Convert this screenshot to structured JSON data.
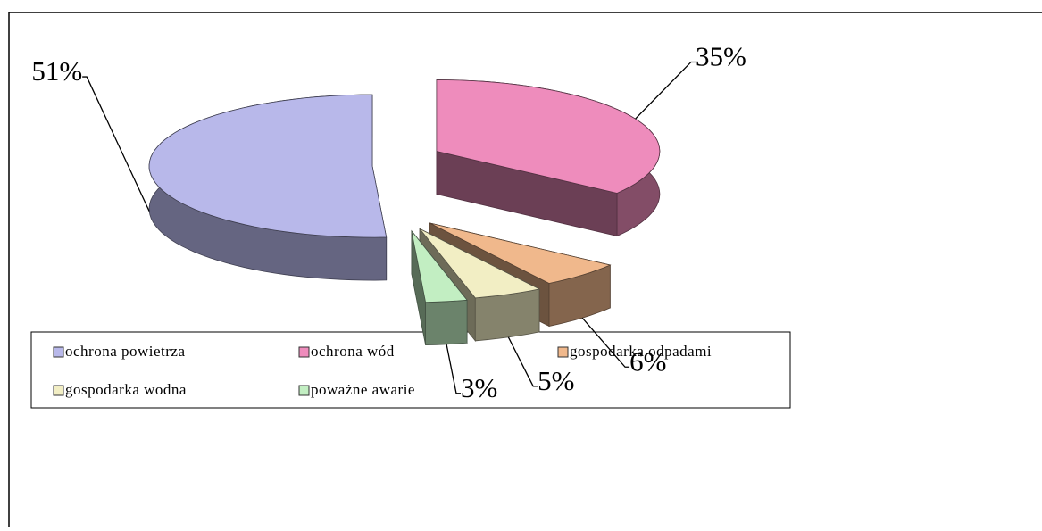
{
  "chart_data": {
    "type": "pie",
    "categories": [
      "ochrona powietrza",
      "ochrona wód",
      "gospodarka odpadami",
      "gospodarka wodna",
      "poważne awarie"
    ],
    "values": [
      51,
      35,
      6,
      5,
      3
    ],
    "value_labels": [
      "51%",
      "35%",
      "6%",
      "5%",
      "3%"
    ],
    "colors": [
      "#b8b8ea",
      "#ee8cbc",
      "#f0b88c",
      "#f2eec4",
      "#c2eec2"
    ],
    "legend": "bottom",
    "three_d": true,
    "exploded": true
  }
}
